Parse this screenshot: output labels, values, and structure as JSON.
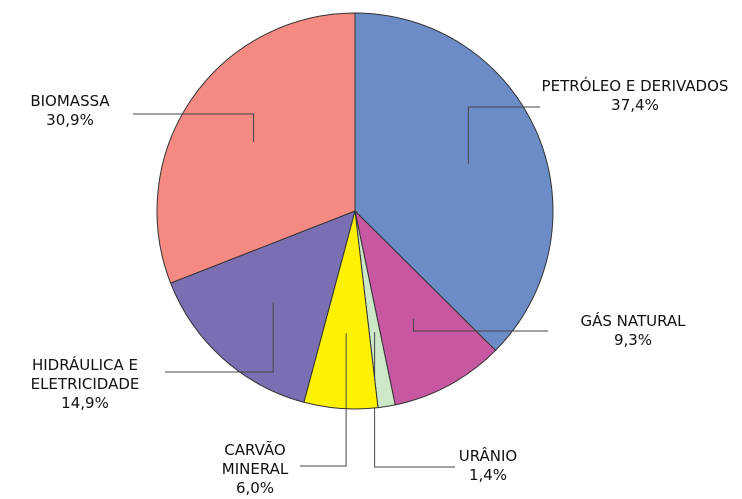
{
  "chart_data": {
    "type": "pie",
    "categories": [
      "PETRÓLEO E DERIVADOS",
      "GÁS NATURAL",
      "URÂNIO",
      "CARVÃO MINERAL",
      "HIDRÁULICA E ELETRICIDADE",
      "BIOMASSA"
    ],
    "values": [
      37.4,
      9.3,
      1.4,
      6.0,
      14.9,
      30.9
    ],
    "value_labels": [
      "37,4%",
      "9,3%",
      "1,4%",
      "6,0%",
      "14,9%",
      "30,9%"
    ],
    "colors": [
      "#6b8cc7",
      "#c757a0",
      "#cde8c8",
      "#fff200",
      "#7b6fb4",
      "#f48a82"
    ]
  }
}
